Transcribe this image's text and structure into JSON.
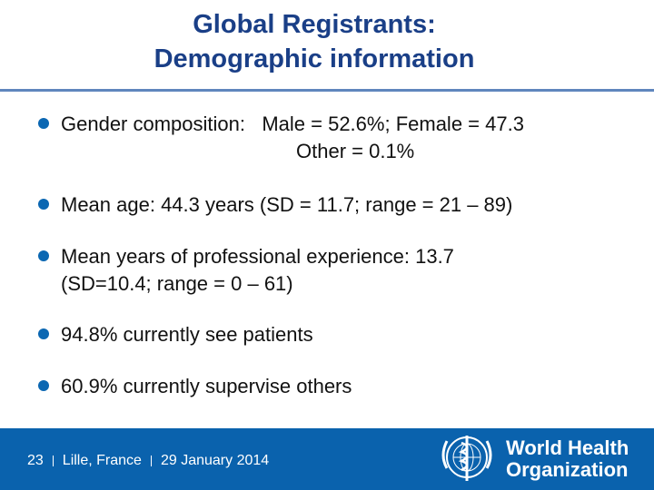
{
  "slide": {
    "title_line1": "Global Registrants:",
    "title_line2": "Demographic information"
  },
  "bullets": [
    {
      "line1": "Gender composition:   Male = 52.6%; Female = 47.3",
      "line2": "Other = 0.1%"
    },
    {
      "line1": "Mean age: 44.3 years (SD = 11.7; range = 21 – 89)"
    },
    {
      "line1": "Mean years of professional experience: 13.7",
      "line2": "(SD=10.4; range = 0 – 61)"
    },
    {
      "line1": "94.8% currently see patients"
    },
    {
      "line1": "60.9% currently supervise others"
    }
  ],
  "footer": {
    "page_number": "23",
    "location": "Lille, France",
    "date": "29 January 2014",
    "org_line1": "World Health",
    "org_line2": "Organization",
    "emblem_icon": "who-emblem-icon",
    "background_color": "#0a62ad"
  },
  "colors": {
    "title": "#1a3f87",
    "bullet": "#0b67b2",
    "rule": "#5f86bd"
  }
}
